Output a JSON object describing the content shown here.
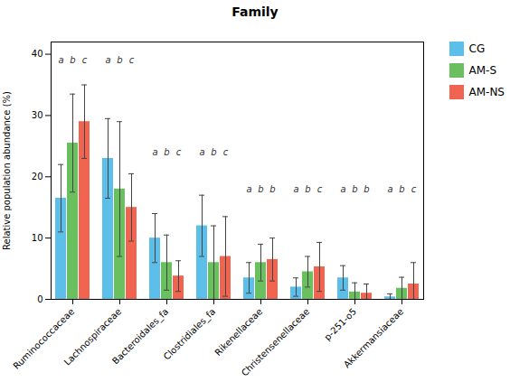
{
  "chart_data": {
    "type": "bar",
    "title": "Family",
    "ylabel": "Relative population abundance (%)",
    "categories": [
      "Ruminococcaceae",
      "Lachnospiraceae",
      "Bacteroidales_fa",
      "Clostridiales_fa",
      "Rikenellaceae",
      "Christensenellaceae",
      "p-251-o5",
      "Akkermansiaceae"
    ],
    "series": [
      {
        "name": "CG",
        "color": "#5bbfea",
        "values": [
          16.5,
          23.0,
          10.0,
          12.0,
          3.5,
          2.0,
          3.5,
          0.4
        ],
        "errors": [
          5.5,
          6.5,
          4.0,
          5.0,
          2.5,
          1.5,
          2.0,
          0.5
        ]
      },
      {
        "name": "AM-S",
        "color": "#6abf5e",
        "values": [
          25.5,
          18.0,
          6.0,
          6.0,
          6.0,
          4.5,
          1.2,
          1.8
        ],
        "errors": [
          8.0,
          11.0,
          4.5,
          6.0,
          3.0,
          2.5,
          1.5,
          1.8
        ]
      },
      {
        "name": "AM-NS",
        "color": "#f06450",
        "values": [
          29.0,
          15.0,
          3.8,
          7.0,
          6.5,
          5.3,
          1.0,
          2.5
        ],
        "errors": [
          6.0,
          5.5,
          2.5,
          6.5,
          3.5,
          4.0,
          1.5,
          3.5
        ]
      }
    ],
    "annotations": [
      {
        "category": "Ruminococcaceae",
        "series": "CG",
        "y": 38.5,
        "text": "a"
      },
      {
        "category": "Ruminococcaceae",
        "series": "AM-S",
        "y": 38.5,
        "text": "b"
      },
      {
        "category": "Ruminococcaceae",
        "series": "AM-NS",
        "y": 38.5,
        "text": "c"
      },
      {
        "category": "Lachnospiraceae",
        "series": "CG",
        "y": 38.5,
        "text": "a"
      },
      {
        "category": "Lachnospiraceae",
        "series": "AM-S",
        "y": 38.5,
        "text": "b"
      },
      {
        "category": "Lachnospiraceae",
        "series": "AM-NS",
        "y": 38.5,
        "text": "c"
      },
      {
        "category": "Bacteroidales_fa",
        "series": "CG",
        "y": 23.5,
        "text": "a"
      },
      {
        "category": "Bacteroidales_fa",
        "series": "AM-S",
        "y": 23.5,
        "text": "b"
      },
      {
        "category": "Bacteroidales_fa",
        "series": "AM-NS",
        "y": 23.5,
        "text": "c"
      },
      {
        "category": "Clostridiales_fa",
        "series": "CG",
        "y": 23.5,
        "text": "a"
      },
      {
        "category": "Clostridiales_fa",
        "series": "AM-S",
        "y": 23.5,
        "text": "b"
      },
      {
        "category": "Clostridiales_fa",
        "series": "AM-NS",
        "y": 23.5,
        "text": "c"
      },
      {
        "category": "Rikenellaceae",
        "series": "CG",
        "y": 17.5,
        "text": "a"
      },
      {
        "category": "Rikenellaceae",
        "series": "AM-S",
        "y": 17.5,
        "text": "b"
      },
      {
        "category": "Rikenellaceae",
        "series": "AM-NS",
        "y": 17.5,
        "text": "b"
      },
      {
        "category": "Christensenellaceae",
        "series": "CG",
        "y": 17.5,
        "text": "a"
      },
      {
        "category": "Christensenellaceae",
        "series": "AM-S",
        "y": 17.5,
        "text": "b"
      },
      {
        "category": "Christensenellaceae",
        "series": "AM-NS",
        "y": 17.5,
        "text": "c"
      },
      {
        "category": "p-251-o5",
        "series": "CG",
        "y": 17.5,
        "text": "a"
      },
      {
        "category": "p-251-o5",
        "series": "AM-S",
        "y": 17.5,
        "text": "b"
      },
      {
        "category": "p-251-o5",
        "series": "AM-NS",
        "y": 17.5,
        "text": "b"
      },
      {
        "category": "Akkermansiaceae",
        "series": "CG",
        "y": 17.5,
        "text": "a"
      },
      {
        "category": "Akkermansiaceae",
        "series": "AM-S",
        "y": 17.5,
        "text": "b"
      },
      {
        "category": "Akkermansiaceae",
        "series": "AM-NS",
        "y": 17.5,
        "text": "c"
      }
    ],
    "ylim": [
      0,
      42
    ],
    "yticks": [
      0,
      10,
      20,
      30,
      40
    ],
    "legend": "upper right"
  }
}
